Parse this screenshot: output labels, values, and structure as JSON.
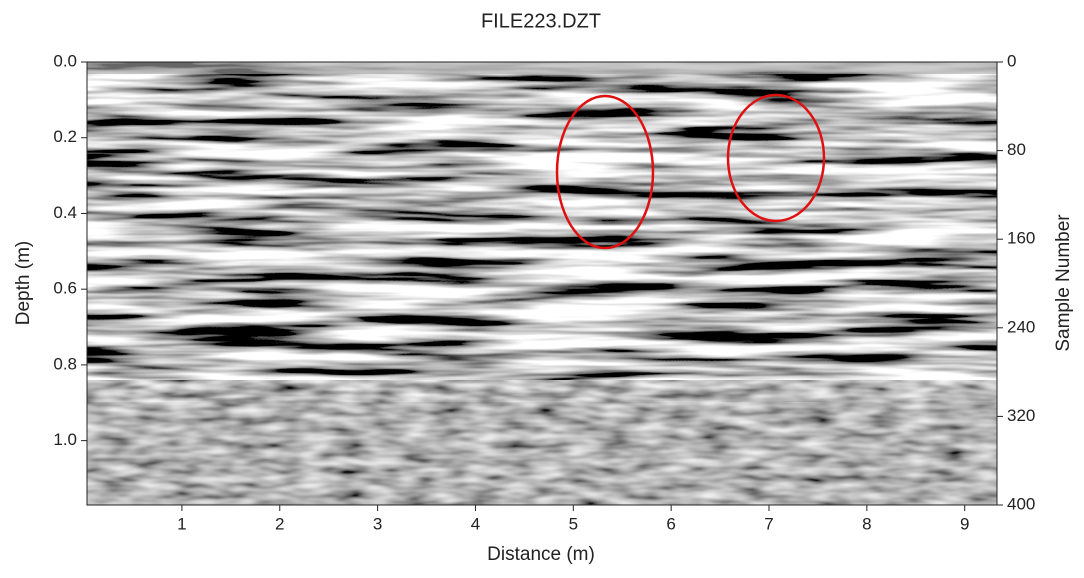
{
  "chart_data": {
    "type": "radargram",
    "title": "FILE223.DZT",
    "x_label": "Distance (m)",
    "y_label": "Depth (m)",
    "y2_label": "Sample Number",
    "xlim": [
      0.03,
      9.33
    ],
    "xticks": [
      1,
      2,
      3,
      4,
      5,
      6,
      7,
      8,
      9
    ],
    "ylim": [
      0,
      1.17
    ],
    "yticks": [
      {
        "value": 0,
        "label": "0.0"
      },
      0.2,
      0.4,
      0.6,
      0.8,
      {
        "value": 1,
        "label": "1.0"
      }
    ],
    "y2lim": [
      0,
      400
    ],
    "y2ticks": [
      0,
      80,
      160,
      240,
      320,
      400
    ]
  }
}
